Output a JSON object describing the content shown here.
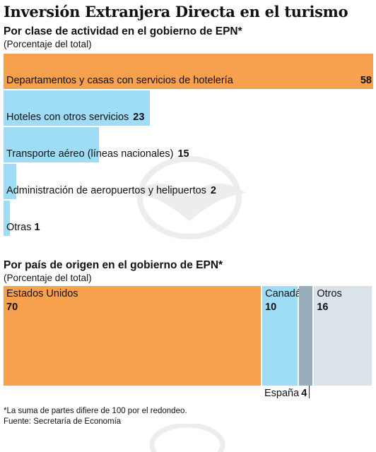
{
  "title": "Inversión Extranjera Directa en el turismo",
  "colors": {
    "orange": "#f7a04e",
    "light_blue": "#9fdcf6",
    "gray": "#99adbb",
    "light_gray": "#dbe3ea"
  },
  "chart_data": [
    {
      "type": "bar",
      "orientation": "horizontal",
      "title": "Por clase de actividad en el gobierno de EPN*",
      "subtitle": "(Porcentaje del total)",
      "categories": [
        "Departamentos y casas con servicios de hotelería",
        "Hoteles con otros servicios",
        "Transporte aéreo (líneas nacionales)",
        "Administración de aeropuertos y helipuertos",
        "Otras"
      ],
      "values": [
        58,
        23,
        15,
        2,
        1
      ],
      "value_labels": [
        "58",
        "23",
        "15",
        "2",
        "1"
      ],
      "xlim": [
        0,
        58
      ],
      "grid": false
    },
    {
      "type": "treemap",
      "title": "Por país de origen en el gobierno de EPN*",
      "subtitle": "(Porcentaje del total)",
      "categories": [
        "Estados Unidos",
        "Canadá",
        "España",
        "Otros"
      ],
      "values": [
        70,
        10,
        4,
        16
      ],
      "value_labels": [
        "70",
        "10",
        "4",
        "16"
      ],
      "callout": {
        "label": "España",
        "value": "4"
      }
    }
  ],
  "footnote": "*La suma de partes difiere de 100 por el redondeo.",
  "source": "Fuente: Secretaría de Economía"
}
